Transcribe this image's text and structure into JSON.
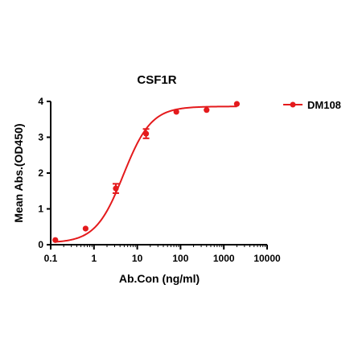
{
  "chart_data": {
    "type": "scatter",
    "title": "CSF1R",
    "xlabel": "Ab.Con (ng/ml)",
    "ylabel": "Mean Abs.(OD450)",
    "xscale": "log",
    "xlim": [
      0.1,
      10000
    ],
    "ylim": [
      0,
      4
    ],
    "x_ticks": [
      0.1,
      1,
      10,
      100,
      1000,
      10000
    ],
    "x_tick_labels": [
      "0.1",
      "1",
      "10",
      "100",
      "1000",
      "10000"
    ],
    "y_ticks": [
      0,
      1,
      2,
      3,
      4
    ],
    "y_tick_labels": [
      "0",
      "1",
      "2",
      "3",
      "4"
    ],
    "grid": false,
    "legend_position": "top-right",
    "series": [
      {
        "name": "DM108",
        "color": "#e41a1c",
        "marker": "circle",
        "points": [
          {
            "x": 0.128,
            "y": 0.13,
            "err": 0.0
          },
          {
            "x": 0.64,
            "y": 0.45,
            "err": 0.0
          },
          {
            "x": 3.2,
            "y": 1.57,
            "err": 0.13
          },
          {
            "x": 16,
            "y": 3.1,
            "err": 0.13
          },
          {
            "x": 80,
            "y": 3.71,
            "err": 0.0
          },
          {
            "x": 400,
            "y": 3.76,
            "err": 0.0
          },
          {
            "x": 2000,
            "y": 3.93,
            "err": 0.0
          }
        ],
        "fit": {
          "bottom": 0.05,
          "top": 3.86,
          "ec50": 4.8,
          "hill": 1.35
        }
      }
    ]
  }
}
